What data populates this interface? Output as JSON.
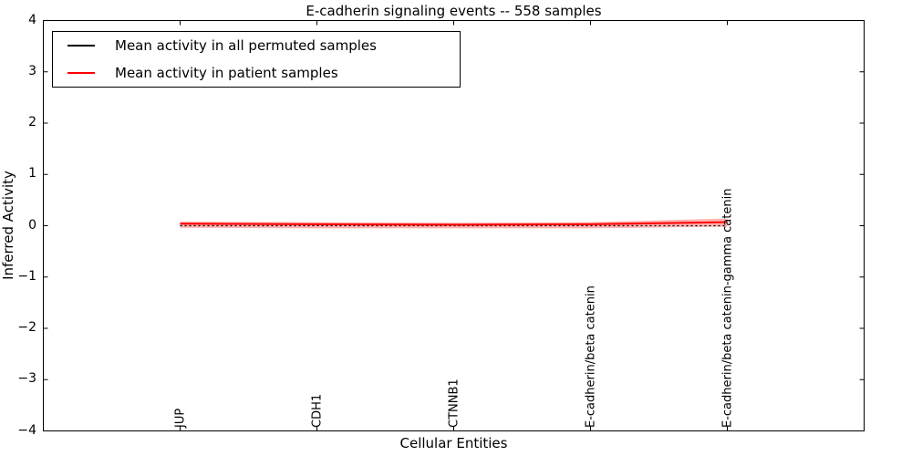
{
  "title": "E-cadherin signaling events -- 558 samples",
  "legend": {
    "items": [
      {
        "label": "Mean activity in all permuted samples",
        "color": "#000000"
      },
      {
        "label": "Mean activity in patient samples",
        "color": "#ff0000"
      }
    ]
  },
  "chart_data": {
    "type": "line",
    "title": "E-cadherin signaling events -- 558 samples",
    "xlabel": "Cellular Entities",
    "ylabel": "Inferred Activity",
    "categories": [
      "JUP",
      "CDH1",
      "CTNNB1",
      "E-cadherin/beta catenin",
      "E-cadherin/beta catenin-gamma catenin"
    ],
    "x_positions": [
      1,
      2,
      3,
      4,
      5
    ],
    "xlim": [
      0,
      6
    ],
    "ylim": [
      -4,
      4
    ],
    "yticks": [
      4,
      3,
      2,
      1,
      0,
      -1,
      -2,
      -3,
      -4
    ],
    "ytick_labels": [
      "4",
      "3",
      "2",
      "1",
      "0",
      "−1",
      "−2",
      "−3",
      "−4"
    ],
    "grid": false,
    "legend_position": "upper left",
    "series": [
      {
        "name": "Mean activity in all permuted samples",
        "color": "#000000",
        "style": "dotted",
        "values": [
          0.0,
          0.0,
          0.0,
          0.0,
          0.0
        ]
      },
      {
        "name": "Mean activity in patient samples",
        "color": "#ff0000",
        "style": "solid",
        "values": [
          0.04,
          0.03,
          0.02,
          0.03,
          0.07
        ]
      }
    ],
    "band": {
      "name": "patient-mean-confidence-band",
      "color": "#ff0000",
      "opacity": 0.3,
      "upper": [
        0.08,
        0.07,
        0.06,
        0.07,
        0.14
      ],
      "lower": [
        -0.04,
        -0.05,
        -0.05,
        -0.05,
        -0.02
      ]
    }
  }
}
